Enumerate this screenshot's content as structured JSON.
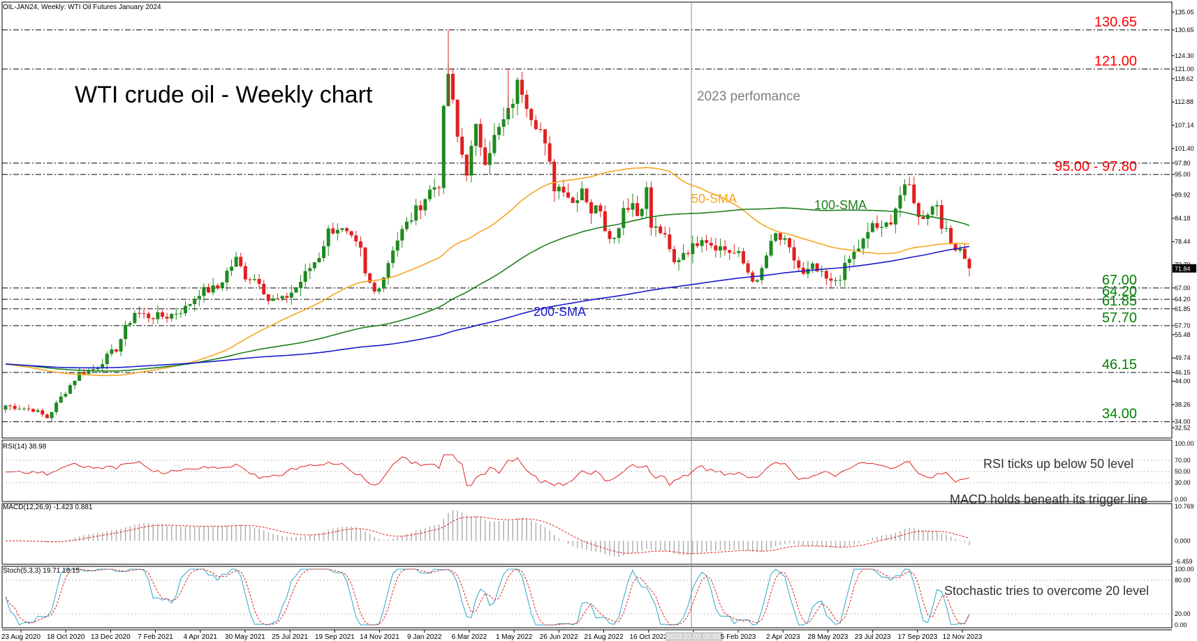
{
  "header": {
    "symbol_text": "OIL-JAN24, Weekly:  WTI Oil Futures January 2024"
  },
  "chart_data": {
    "type": "candlestick",
    "title": "WTI crude oil - Weekly chart",
    "annotation_2023": "2023 perfomance",
    "price_axis": {
      "ylim": [
        30.5,
        137
      ],
      "ticks": [
        "135.05",
        "130.65",
        "124.30",
        "121.00",
        "118.62",
        "112.88",
        "107.14",
        "101.40",
        "97.80",
        "95.00",
        "89.92",
        "84.18",
        "78.44",
        "72.70",
        "71.84",
        "67.00",
        "64.20",
        "61.85",
        "57.70",
        "55.48",
        "49.74",
        "46.15",
        "44.00",
        "38.26",
        "34.00",
        "32.52"
      ],
      "current_price": "71.84"
    },
    "levels": [
      {
        "label": "130.65",
        "value": 130.65,
        "color": "#ff0000"
      },
      {
        "label": "121.00",
        "value": 121.0,
        "color": "#ff0000"
      },
      {
        "label": "95.00 - 97.80",
        "value": 95.0,
        "color": "#ff0000"
      },
      {
        "label": "",
        "value": 97.8,
        "color": "#ff0000"
      },
      {
        "label": "67.00",
        "value": 67.0,
        "color": "#008000"
      },
      {
        "label": "64.20",
        "value": 64.2,
        "color": "#008000"
      },
      {
        "label": "61.85",
        "value": 61.85,
        "color": "#008000"
      },
      {
        "label": "57.70",
        "value": 57.7,
        "color": "#008000"
      },
      {
        "label": "46.15",
        "value": 46.15,
        "color": "#008000"
      },
      {
        "label": "34.00",
        "value": 34.0,
        "color": "#008000"
      }
    ],
    "x_labels": [
      "23 Aug 2020",
      "18 Oct 2020",
      "13 Dec 2020",
      "7 Feb 2021",
      "4 Apr 2021",
      "30 May 2021",
      "25 Jul 2021",
      "19 Sep 2021",
      "14 Nov 2021",
      "9 Jan 2022",
      "6 Mar 2022",
      "1 May 2022",
      "26 Jun 2022",
      "21 Aug 2022",
      "16 Oct 2022",
      "2023.01.01 00:00",
      "5 Feb 2023",
      "2 Apr 2023",
      "28 May 2023",
      "23 Jul 2023",
      "17 Sep 2023",
      "12 Nov 2023"
    ],
    "weekly_close_anchors": [
      [
        0,
        38
      ],
      [
        6,
        37
      ],
      [
        9,
        35
      ],
      [
        12,
        40
      ],
      [
        16,
        46
      ],
      [
        19,
        47
      ],
      [
        24,
        52
      ],
      [
        26,
        57
      ],
      [
        28,
        61
      ],
      [
        31,
        60
      ],
      [
        35,
        60
      ],
      [
        39,
        62
      ],
      [
        42,
        66
      ],
      [
        46,
        67
      ],
      [
        48,
        71
      ],
      [
        50,
        74
      ],
      [
        52,
        70
      ],
      [
        55,
        69
      ],
      [
        57,
        64
      ],
      [
        60,
        64
      ],
      [
        63,
        67
      ],
      [
        66,
        72
      ],
      [
        68,
        75
      ],
      [
        70,
        81
      ],
      [
        72,
        82
      ],
      [
        74,
        80
      ],
      [
        77,
        76
      ],
      [
        78,
        70
      ],
      [
        80,
        66
      ],
      [
        82,
        70
      ],
      [
        84,
        77
      ],
      [
        86,
        81
      ],
      [
        89,
        86
      ],
      [
        92,
        91
      ],
      [
        94,
        93
      ],
      [
        95,
        110
      ],
      [
        96,
        120
      ],
      [
        98,
        104
      ],
      [
        100,
        96
      ],
      [
        102,
        106
      ],
      [
        104,
        99
      ],
      [
        106,
        104
      ],
      [
        109,
        110
      ],
      [
        111,
        117
      ],
      [
        112,
        116
      ],
      [
        114,
        110
      ],
      [
        116,
        106
      ],
      [
        118,
        97
      ],
      [
        119,
        92
      ],
      [
        121,
        92
      ],
      [
        123,
        88
      ],
      [
        125,
        92
      ],
      [
        127,
        86
      ],
      [
        129,
        87
      ],
      [
        130,
        82
      ],
      [
        132,
        79
      ],
      [
        134,
        87
      ],
      [
        136,
        88
      ],
      [
        137,
        85
      ],
      [
        139,
        91
      ],
      [
        140,
        82
      ],
      [
        142,
        81
      ],
      [
        143,
        79
      ],
      [
        145,
        73
      ],
      [
        147,
        76
      ],
      [
        149,
        77
      ],
      [
        151,
        80
      ],
      [
        153,
        78
      ],
      [
        155,
        77
      ],
      [
        157,
        76
      ],
      [
        159,
        75
      ],
      [
        161,
        71
      ],
      [
        163,
        68
      ],
      [
        165,
        75
      ],
      [
        167,
        80
      ],
      [
        169,
        78
      ],
      [
        171,
        74
      ],
      [
        173,
        70
      ],
      [
        175,
        72
      ],
      [
        177,
        70
      ],
      [
        179,
        68
      ],
      [
        181,
        70
      ],
      [
        183,
        74
      ],
      [
        185,
        77
      ],
      [
        187,
        80
      ],
      [
        188,
        83
      ],
      [
        190,
        81
      ],
      [
        192,
        84
      ],
      [
        194,
        90
      ],
      [
        196,
        92
      ],
      [
        197,
        89
      ],
      [
        198,
        84
      ],
      [
        200,
        86
      ],
      [
        202,
        88
      ],
      [
        203,
        83
      ],
      [
        205,
        78
      ],
      [
        207,
        77
      ],
      [
        208,
        75
      ],
      [
        209,
        72
      ]
    ],
    "indicators": {
      "sma50_label": "50-SMA",
      "sma100_label": "100-SMA",
      "sma200_label": "200-SMA",
      "sma50_color": "#f5a623",
      "sma100_color": "#1e7f1e",
      "sma200_color": "#1a1acc"
    },
    "rsi": {
      "header": "RSI(14) 38.98",
      "note": "RSI ticks up below 50 level",
      "ylim": [
        0,
        100
      ],
      "ticks": [
        "100.00",
        "70.00",
        "50.00",
        "30.00",
        "0.00"
      ],
      "last": 38.98
    },
    "macd": {
      "header": "MACD(12,26,9) -1.423 0.881",
      "note": "MACD holds beneath its trigger line",
      "ticks": [
        "10.769",
        "0.000",
        "-6.459"
      ],
      "last_macd": -1.423,
      "last_signal": 0.881
    },
    "stoch": {
      "header": "Stoch(5,3,3) 19.71 18.15",
      "note": "Stochastic tries to overcome 20 level",
      "ylim": [
        0,
        100
      ],
      "ticks": [
        "100.00",
        "80.00",
        "20.00",
        "0.00"
      ],
      "last_k": 19.71,
      "last_d": 18.15
    }
  }
}
